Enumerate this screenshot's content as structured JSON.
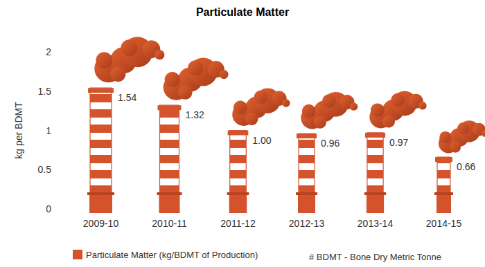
{
  "chart_data": {
    "type": "bar",
    "title": "Particulate Matter",
    "y_label": "kg per BDMT",
    "categories": [
      "2009-10",
      "2010-11",
      "2011-12",
      "2012-13",
      "2013-14",
      "2014-15"
    ],
    "series": [
      {
        "name": "Particulate Matter (kg/BDMT of Production)",
        "color": "#d4532c",
        "values": [
          1.54,
          1.32,
          1.0,
          0.96,
          0.97,
          0.66
        ],
        "value_labels": [
          "1.54",
          "1.32",
          "1.00",
          "0.96",
          "0.97",
          "0.66"
        ]
      }
    ],
    "annotations": [
      "# BDMT - Bone Dry Metric Tonne"
    ],
    "ylim": [
      0,
      2
    ],
    "yticks": [
      0,
      0.5,
      1,
      1.5,
      2
    ],
    "grid": false,
    "data_labels": true,
    "legend": "bottom-left"
  }
}
